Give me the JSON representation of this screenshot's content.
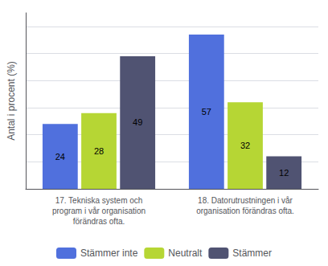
{
  "chart_data": {
    "type": "bar",
    "categories": [
      "17. Tekniska system och\nprogram i vår organisation\nförändras ofta.",
      "18. Datorutrustningen i vår\norganisation förändras ofta."
    ],
    "series": [
      {
        "name": "Stämmer inte",
        "values": [
          24,
          57
        ]
      },
      {
        "name": "Neutralt",
        "values": [
          28,
          32
        ]
      },
      {
        "name": "Stämmer",
        "values": [
          49,
          12
        ]
      }
    ],
    "ylabel": "Antal i procent (%)",
    "ylim": [
      0,
      65
    ],
    "yticks": [
      0,
      10,
      20,
      30,
      40,
      50,
      60
    ],
    "grid": true,
    "legend": "bottom",
    "data_labels": true,
    "tick_labels": "x"
  }
}
